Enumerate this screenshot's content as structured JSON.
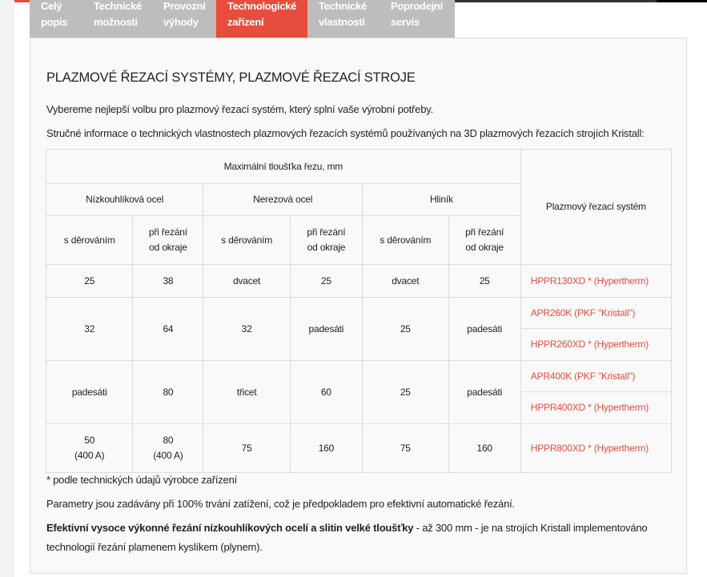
{
  "tabs": [
    {
      "l1": "Celý",
      "l2": "popis"
    },
    {
      "l1": "Technické",
      "l2": "možnosti"
    },
    {
      "l1": "Provozní",
      "l2": "výhody"
    },
    {
      "l1": "Technologické",
      "l2": "zařízení"
    },
    {
      "l1": "Technické",
      "l2": "vlastnosti"
    },
    {
      "l1": "Poprodejní",
      "l2": "servis"
    }
  ],
  "active_tab": 3,
  "colors": {
    "accent": "#e74c3c",
    "tab": "#bdbdbd"
  },
  "title": "PLAZMOVÉ ŘEZACÍ SYSTÉMY, PLAZMOVÉ ŘEZACÍ STROJE",
  "intro1": "Vybereme nejlepší volbu pro plazmový řezací systém, který splní vaše výrobní potřeby.",
  "intro2": "Stručné informace o technických vlastnostech plazmových řezacích systémů používaných na 3D plazmových řezacích strojích Kristall:",
  "table": {
    "header_max": "Maximální tloušťka řezu, mm",
    "header_system": "Plazmový řezací systém",
    "materials": [
      "Nízkouhlíková ocel",
      "Nerezová ocel",
      "Hliník"
    ],
    "sub1": "s děrováním",
    "sub2a": "při řezání",
    "sub2b": "od okraje",
    "rows": [
      {
        "v": [
          "25",
          "38",
          "dvacet",
          "25",
          "dvacet",
          "25"
        ],
        "systems": [
          "HPPR130XD * (Hypertherm)"
        ]
      },
      {
        "v": [
          "32",
          "64",
          "32",
          "padesáti",
          "25",
          "padesáti"
        ],
        "systems": [
          "APR260K (PKF \"Kristall\")",
          "HPPR260XD * (Hypertherm)"
        ]
      },
      {
        "v": [
          "padesáti",
          "80",
          "třicet",
          "60",
          "25",
          "padesáti"
        ],
        "systems": [
          "APR400K (PKF \"Kristall\")",
          "HPPR400XD * (Hypertherm)"
        ]
      },
      {
        "v": [
          "50",
          "80",
          "75",
          "160",
          "75",
          "160"
        ],
        "v2": [
          "(400 A)",
          "(400 A)"
        ],
        "systems": [
          "HPPR800XD * (Hypertherm)"
        ]
      }
    ]
  },
  "footnote": "* podle technických údajů výrobce zařízení",
  "params": "Parametry jsou zadávány při 100% trvání zatížení, což je předpokladem pro efektivní automatické řezání.",
  "bold": "Efektivní vysoce výkonné řezání nízkouhlíkových ocelí a slitin velké tloušťky",
  "rest": " - až 300 mm - je na strojích Kristall implementováno technologií řezání plamenem kyslíkem (plynem)."
}
